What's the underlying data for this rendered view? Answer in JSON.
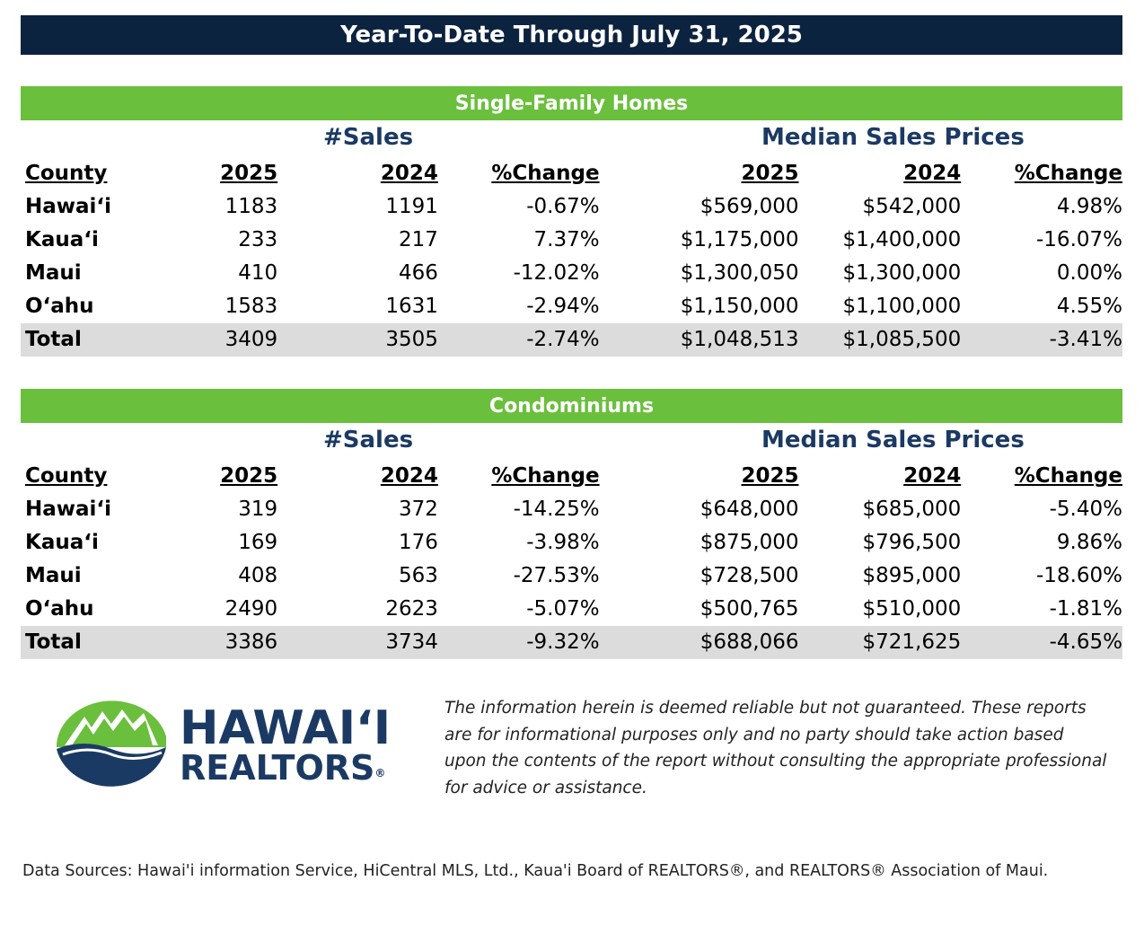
{
  "title": "Year-To-Date Through July 31, 2025",
  "group_labels": {
    "sales": "#Sales",
    "prices": "Median Sales Prices"
  },
  "headers": [
    "County",
    "2025",
    "2024",
    "%Change",
    "2025",
    "2024",
    "%Change"
  ],
  "single_family": {
    "title": "Single-Family Homes",
    "rows": [
      [
        "Hawai‘i",
        "1183",
        "1191",
        "-0.67%",
        "$569,000",
        "$542,000",
        "4.98%"
      ],
      [
        "Kaua‘i",
        "233",
        "217",
        "7.37%",
        "$1,175,000",
        "$1,400,000",
        "-16.07%"
      ],
      [
        "Maui",
        "410",
        "466",
        "-12.02%",
        "$1,300,050",
        "$1,300,000",
        "0.00%"
      ],
      [
        "O‘ahu",
        "1583",
        "1631",
        "-2.94%",
        "$1,150,000",
        "$1,100,000",
        "4.55%"
      ]
    ],
    "total": [
      "Total",
      "3409",
      "3505",
      "-2.74%",
      "$1,048,513",
      "$1,085,500",
      "-3.41%"
    ]
  },
  "condominiums": {
    "title": "Condominiums",
    "rows": [
      [
        "Hawai‘i",
        "319",
        "372",
        "-14.25%",
        "$648,000",
        "$685,000",
        "-5.40%"
      ],
      [
        "Kaua‘i",
        "169",
        "176",
        "-3.98%",
        "$875,000",
        "$796,500",
        "9.86%"
      ],
      [
        "Maui",
        "408",
        "563",
        "-27.53%",
        "$728,500",
        "$895,000",
        "-18.60%"
      ],
      [
        "O‘ahu",
        "2490",
        "2623",
        "-5.07%",
        "$500,765",
        "$510,000",
        "-1.81%"
      ]
    ],
    "total": [
      "Total",
      "3386",
      "3734",
      "-9.32%",
      "$688,066",
      "$721,625",
      "-4.65%"
    ]
  },
  "logo": {
    "line1": "HAWAI‘I",
    "line2": "REALTORS",
    "mark": "®"
  },
  "disclaimer": "The information herein is deemed reliable but not guaranteed. These reports are for informational purposes only and no party should take action based upon the contents of the report without consulting the appropriate professional for advice or assistance.",
  "footer": "Data Sources: Hawai'i information Service, HiCentral MLS, Ltd., Kaua'i Board of REALTORS®, and REALTORS® Association of Maui.",
  "colors": {
    "navy": "#0c2340",
    "green": "#6abf3c",
    "total_row": "#dcdcdc",
    "brand_blue": "#1b3a63"
  }
}
